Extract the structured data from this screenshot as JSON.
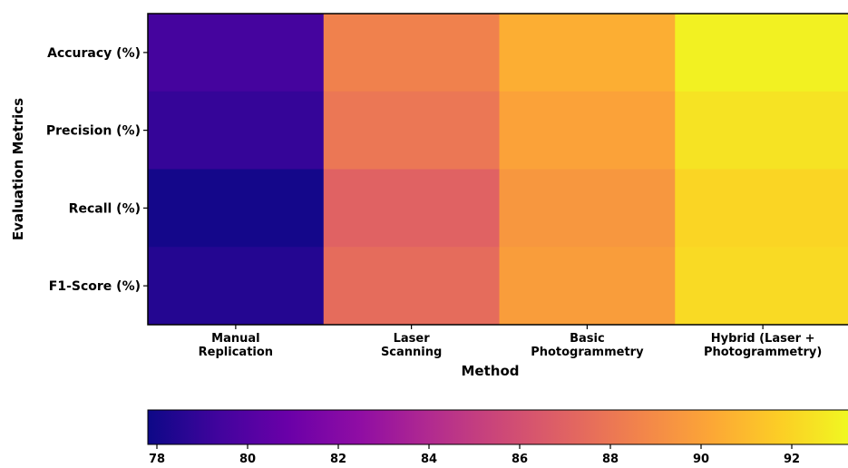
{
  "chart_data": {
    "type": "heatmap",
    "title": "",
    "xlabel": "Method",
    "ylabel": "Evaluation Metrics",
    "x_categories": [
      [
        "Manual",
        "Replication"
      ],
      [
        "Laser",
        "Scanning"
      ],
      [
        "Basic",
        "Photogrammetry"
      ],
      [
        "Hybrid (Laser +",
        "Photogrammetry)"
      ]
    ],
    "y_categories": [
      "Accuracy (%)",
      "Precision (%)",
      "Recall (%)",
      "F1-Score (%)"
    ],
    "values": [
      [
        79.5,
        88.5,
        90.5,
        93.0
      ],
      [
        79.0,
        88.0,
        90.0,
        92.5
      ],
      [
        78.0,
        87.0,
        89.5,
        92.0
      ],
      [
        78.5,
        87.5,
        89.8,
        92.2
      ]
    ],
    "colormap": "plasma",
    "vmin": 77.8,
    "vmax": 93.3,
    "colorbar": {
      "ticks": [
        78,
        80,
        82,
        84,
        86,
        88,
        90,
        92
      ],
      "placement": "bottom"
    }
  }
}
